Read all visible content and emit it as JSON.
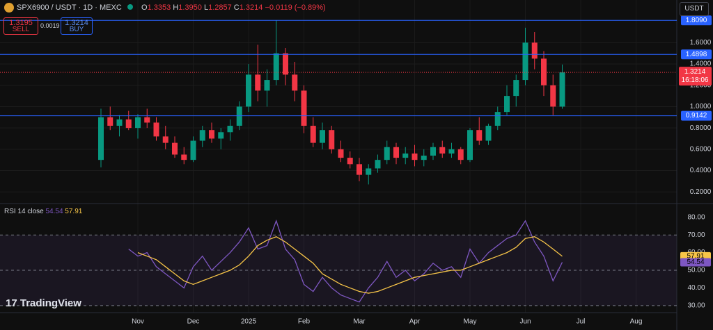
{
  "header": {
    "symbol": "SPX6900 / USDT · 1D · MEXC",
    "o_label": "O",
    "o": "1.3353",
    "h_label": "H",
    "h": "1.3950",
    "l_label": "L",
    "l": "1.2857",
    "c_label": "C",
    "c": "1.3214",
    "change": "−0.0119 (−0.89%)",
    "sell_price": "1.3195",
    "sell": "SELL",
    "spread": "0.0019",
    "buy_price": "1.3214",
    "buy": "BUY",
    "currency": "USDT",
    "brand": "TradingView"
  },
  "chart_data": {
    "type": "candlestick",
    "categories": [
      null,
      null,
      null,
      null,
      "Nov",
      null,
      null,
      null,
      null,
      null,
      "Dec",
      null,
      null,
      null,
      null,
      null,
      "2025",
      null,
      null,
      null,
      null,
      null,
      "Feb",
      null,
      null,
      null,
      null,
      null,
      "Mar",
      null,
      null,
      null,
      null,
      null,
      "Apr",
      null,
      null,
      null,
      null,
      null,
      "May",
      null,
      null,
      null,
      null,
      null,
      "Jun",
      null,
      null,
      null,
      null,
      null,
      "Jul",
      null,
      null,
      null,
      null,
      null,
      "Aug",
      null,
      null,
      null,
      null
    ],
    "open": [
      0.5,
      0.9,
      0.82,
      0.88,
      0.8,
      0.9,
      0.85,
      0.72,
      0.66,
      0.55,
      0.5,
      0.68,
      0.78,
      0.7,
      0.76,
      0.82,
      1.0,
      1.3,
      1.15,
      1.25,
      1.5,
      1.3,
      1.15,
      0.82,
      0.66,
      0.78,
      0.6,
      0.52,
      0.46,
      0.36,
      0.42,
      0.5,
      0.62,
      0.52,
      0.56,
      0.5,
      0.54,
      0.62,
      0.56,
      0.6,
      0.5,
      0.78,
      0.68,
      0.82,
      0.95,
      1.1,
      1.25,
      1.6,
      1.45,
      1.2,
      1.0,
      null,
      null,
      null,
      null,
      null,
      null,
      null,
      null,
      null,
      null,
      null,
      null
    ],
    "high": [
      0.98,
      1.0,
      0.92,
      0.96,
      0.93,
      0.98,
      0.9,
      0.82,
      0.72,
      0.62,
      0.72,
      0.82,
      0.85,
      0.8,
      0.88,
      1.05,
      1.4,
      1.58,
      1.35,
      1.81,
      1.55,
      1.42,
      1.2,
      0.9,
      0.85,
      0.82,
      0.68,
      0.58,
      0.52,
      0.46,
      0.55,
      0.68,
      0.66,
      0.62,
      0.64,
      0.6,
      0.66,
      0.68,
      0.66,
      0.62,
      0.8,
      0.9,
      0.84,
      1.0,
      1.2,
      1.3,
      1.74,
      1.7,
      1.52,
      1.3,
      1.395,
      null,
      null,
      null,
      null,
      null,
      null,
      null,
      null,
      null,
      null,
      null,
      null
    ],
    "low": [
      0.43,
      0.78,
      0.72,
      0.78,
      0.7,
      0.8,
      0.68,
      0.6,
      0.52,
      0.46,
      0.48,
      0.62,
      0.66,
      0.6,
      0.68,
      0.78,
      0.95,
      1.05,
      1.0,
      1.2,
      1.2,
      1.05,
      0.75,
      0.62,
      0.6,
      0.56,
      0.48,
      0.42,
      0.3,
      0.27,
      0.38,
      0.46,
      0.46,
      0.46,
      0.44,
      0.44,
      0.5,
      0.52,
      0.52,
      0.46,
      0.48,
      0.64,
      0.64,
      0.78,
      0.92,
      1.0,
      1.2,
      1.35,
      1.1,
      0.92,
      0.98,
      null,
      null,
      null,
      null,
      null,
      null,
      null,
      null,
      null,
      null,
      null,
      null
    ],
    "close": [
      0.9,
      0.82,
      0.88,
      0.8,
      0.9,
      0.85,
      0.72,
      0.66,
      0.55,
      0.5,
      0.68,
      0.78,
      0.7,
      0.76,
      0.82,
      1.0,
      1.3,
      1.15,
      1.25,
      1.5,
      1.3,
      1.15,
      0.82,
      0.66,
      0.78,
      0.6,
      0.52,
      0.46,
      0.36,
      0.42,
      0.5,
      0.62,
      0.52,
      0.56,
      0.5,
      0.54,
      0.62,
      0.56,
      0.6,
      0.5,
      0.78,
      0.68,
      0.82,
      0.95,
      1.1,
      1.25,
      1.6,
      1.45,
      1.2,
      1.0,
      1.3214,
      null,
      null,
      null,
      null,
      null,
      null,
      null,
      null,
      null,
      null,
      null,
      null
    ],
    "up_color": "#089981",
    "down_color": "#f23645",
    "ylim": [
      0.11,
      2.0
    ],
    "yticks": [
      {
        "value": 0.2,
        "label": "0.2000"
      },
      {
        "value": 0.4,
        "label": "0.4000"
      },
      {
        "value": 0.6,
        "label": "0.6000"
      },
      {
        "value": 0.8,
        "label": "0.8000"
      },
      {
        "value": 1.0,
        "label": "1.0000"
      },
      {
        "value": 1.2,
        "label": "1.2000"
      },
      {
        "value": 1.4,
        "label": "1.4000"
      },
      {
        "value": 1.6,
        "label": "1.6000"
      }
    ],
    "levels": [
      {
        "value": 1.809,
        "label": "1.8090"
      },
      {
        "value": 1.4898,
        "label": "1.4898"
      },
      {
        "value": 0.9142,
        "label": "0.9142"
      }
    ],
    "level_color": "#2962ff",
    "countdown": "16:18:06",
    "grid": true,
    "rsi": {
      "type": "line",
      "title": "RSI",
      "params": "14 close",
      "series": [
        {
          "color": "#7e57c2",
          "values": [
            null,
            null,
            null,
            62,
            58,
            60,
            52,
            48,
            44,
            40,
            52,
            58,
            50,
            55,
            60,
            66,
            74,
            62,
            64,
            78,
            62,
            56,
            42,
            38,
            46,
            40,
            36,
            34,
            32,
            40,
            46,
            55,
            46,
            50,
            44,
            48,
            54,
            50,
            52,
            46,
            62,
            54,
            60,
            64,
            68,
            70,
            78,
            66,
            58,
            44,
            54.54,
            null,
            null,
            null,
            null,
            null,
            null,
            null,
            null,
            null,
            null,
            null,
            null
          ]
        },
        {
          "color": "#f7c548",
          "values": [
            null,
            null,
            null,
            null,
            60,
            58,
            56,
            52,
            48,
            44,
            42,
            44,
            46,
            48,
            50,
            53,
            58,
            64,
            67,
            69,
            66,
            62,
            58,
            54,
            48,
            45,
            42,
            40,
            38,
            37,
            38,
            40,
            42,
            44,
            46,
            47,
            48,
            49,
            50,
            50,
            52,
            54,
            56,
            58,
            60,
            63,
            68,
            69,
            66,
            62,
            57.91,
            null,
            null,
            null,
            null,
            null,
            null,
            null,
            null,
            null,
            null,
            null,
            null
          ]
        }
      ],
      "ylim": [
        26,
        87
      ],
      "yticks": [
        {
          "value": 30,
          "label": "30.00"
        },
        {
          "value": 40,
          "label": "40.00"
        },
        {
          "value": 50,
          "label": "50.00"
        },
        {
          "value": 60,
          "label": "60.00"
        },
        {
          "value": 70,
          "label": "70.00"
        },
        {
          "value": 80,
          "label": "80.00"
        }
      ],
      "levels": [
        70,
        50,
        30
      ]
    }
  }
}
